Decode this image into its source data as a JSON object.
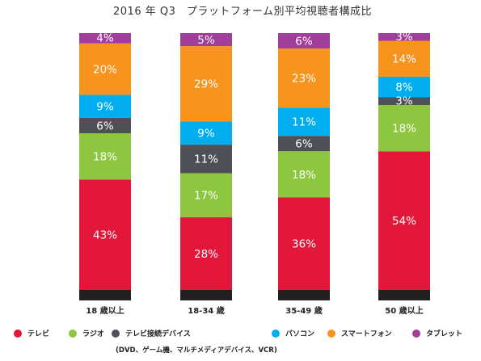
{
  "chart_data": {
    "type": "bar",
    "stacked": true,
    "title": "2016 年 Q3　プラットフォーム別平均視聴者構成比",
    "categories": [
      "18 歳以上",
      "18-34 歳",
      "35-49 歳",
      "50 歳以上"
    ],
    "series": [
      {
        "name": "テレビ",
        "color": "#e3173a",
        "values": [
          43,
          28,
          36,
          54
        ]
      },
      {
        "name": "ラジオ",
        "color": "#8dc63f",
        "values": [
          18,
          17,
          18,
          18
        ]
      },
      {
        "name": "テレビ接続デバイス",
        "color": "#4d5157",
        "values": [
          6,
          11,
          6,
          3
        ]
      },
      {
        "name": "パソコン",
        "color": "#00aeef",
        "values": [
          9,
          9,
          11,
          8
        ]
      },
      {
        "name": "スマートフォン",
        "color": "#f7941d",
        "values": [
          20,
          29,
          23,
          14
        ]
      },
      {
        "name": "タブレット",
        "color": "#a03e99",
        "values": [
          4,
          5,
          6,
          3
        ]
      }
    ],
    "labels": [
      [
        "43%",
        "18%",
        "6%",
        "9%",
        "20%",
        "4%"
      ],
      [
        "28%",
        "17%",
        "11%",
        "9%",
        "29%",
        "5%"
      ],
      [
        "36%",
        "18%",
        "6%",
        "11%",
        "23%",
        "6%"
      ],
      [
        "54%",
        "18%",
        "3%",
        "8%",
        "14%",
        "3%"
      ]
    ],
    "legend_note": "(DVD、ゲーム機、マルチメディアデバイス、VCR)",
    "legend_position": "bottom",
    "base_color": "#231f20",
    "grid": false
  }
}
